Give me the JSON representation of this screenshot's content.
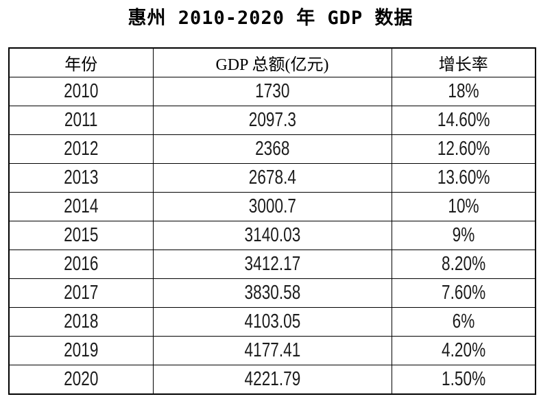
{
  "title": "惠州 2010-2020 年 GDP 数据",
  "table": {
    "headers": [
      "年份",
      "GDP 总额(亿元)",
      "增长率"
    ],
    "rows": [
      [
        "2010",
        "1730",
        "18%"
      ],
      [
        "2011",
        "2097.3",
        "14.60%"
      ],
      [
        "2012",
        "2368",
        "12.60%"
      ],
      [
        "2013",
        "2678.4",
        "13.60%"
      ],
      [
        "2014",
        "3000.7",
        "10%"
      ],
      [
        "2015",
        "3140.03",
        "9%"
      ],
      [
        "2016",
        "3412.17",
        "8.20%"
      ],
      [
        "2017",
        "3830.58",
        "7.60%"
      ],
      [
        "2018",
        "4103.05",
        "6%"
      ],
      [
        "2019",
        "4177.41",
        "4.20%"
      ],
      [
        "2020",
        "4221.79",
        "1.50%"
      ]
    ]
  },
  "chart_data": {
    "type": "table",
    "title": "惠州 2010-2020 年 GDP 数据",
    "columns": [
      "年份",
      "GDP 总额(亿元)",
      "增长率"
    ],
    "years": [
      2010,
      2011,
      2012,
      2013,
      2014,
      2015,
      2016,
      2017,
      2018,
      2019,
      2020
    ],
    "gdp_total_yi_yuan": [
      1730,
      2097.3,
      2368,
      2678.4,
      3000.7,
      3140.03,
      3412.17,
      3830.58,
      4103.05,
      4177.41,
      4221.79
    ],
    "growth_rate_percent": [
      18,
      14.6,
      12.6,
      13.6,
      10,
      9,
      8.2,
      7.6,
      6,
      4.2,
      1.5
    ],
    "growth_rate_labels": [
      "18%",
      "14.60%",
      "12.60%",
      "13.60%",
      "10%",
      "9%",
      "8.20%",
      "7.60%",
      "6%",
      "4.20%",
      "1.50%"
    ]
  },
  "colors": {
    "background": "#ffffff",
    "border": "#000000",
    "text": "#000000"
  }
}
